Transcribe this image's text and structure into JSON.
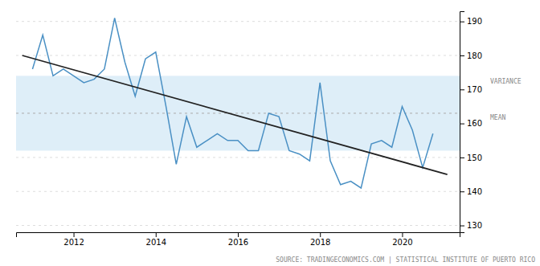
{
  "chart_data": {
    "type": "line",
    "series": [
      {
        "color": "#4a90c4",
        "x": [
          2011.0,
          2011.25,
          2011.5,
          2011.75,
          2012.0,
          2012.25,
          2012.5,
          2012.75,
          2013.0,
          2013.25,
          2013.5,
          2013.75,
          2014.0,
          2014.25,
          2014.5,
          2014.75,
          2015.0,
          2015.25,
          2015.5,
          2015.75,
          2016.0,
          2016.25,
          2016.5,
          2016.75,
          2017.0,
          2017.25,
          2017.5,
          2017.75,
          2018.0,
          2018.25,
          2018.5,
          2018.75,
          2019.0,
          2019.25,
          2019.5,
          2019.75,
          2020.0,
          2020.25,
          2020.5,
          2020.75
        ],
        "values": [
          176,
          186,
          174,
          176,
          174,
          172,
          173,
          176,
          191,
          178,
          168,
          179,
          181,
          165,
          148,
          162,
          153,
          155,
          157,
          155,
          155,
          152,
          152,
          163,
          162,
          152,
          151,
          149,
          172,
          149,
          142,
          143,
          141,
          154,
          155,
          153,
          165,
          158,
          147,
          157
        ]
      },
      {
        "color": "#222222",
        "x": [
          2010.75,
          2021.1
        ],
        "values": [
          180,
          145
        ]
      }
    ],
    "variance_band": {
      "lower": 152,
      "upper": 174,
      "label": "VARIANCE",
      "color": "#deeef8"
    },
    "mean": {
      "value": 163,
      "label": "MEAN",
      "color": "#aaaaaa"
    },
    "source": "SOURCE: TRADINGECONOMICS.COM | STATISTICAL INSTITUTE OF PUERTO RICO",
    "xlim": [
      2010.6,
      2021.4
    ],
    "xticks": [
      2012,
      2014,
      2016,
      2018,
      2020
    ],
    "ylim": [
      128,
      193
    ],
    "yticks": [
      130,
      140,
      150,
      160,
      170,
      180,
      190
    ],
    "grid": true
  }
}
